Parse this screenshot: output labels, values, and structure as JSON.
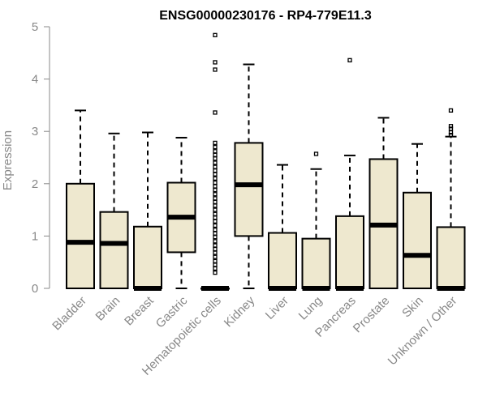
{
  "chart_data": {
    "type": "box",
    "title": "ENSG00000230176 - RP4-779E11.3",
    "xlabel": "",
    "ylabel": "Expression",
    "ylim": [
      0,
      5
    ],
    "yticks": [
      "0",
      "1",
      "2",
      "3",
      "4",
      "5"
    ],
    "box_fill": "#EEE8CF",
    "categories": [
      "Bladder",
      "Brain",
      "Breast",
      "Gastric",
      "Hematopoietic cells",
      "Kidney",
      "Liver",
      "Lung",
      "Pancreas",
      "Prostate",
      "Skin",
      "Unknown / Other"
    ],
    "boxes": [
      {
        "min": 0,
        "q1": 0,
        "median": 0.88,
        "q3": 2.0,
        "max": 3.4,
        "outliers": []
      },
      {
        "min": 0,
        "q1": 0,
        "median": 0.86,
        "q3": 1.46,
        "max": 2.96,
        "outliers": []
      },
      {
        "min": 0,
        "q1": 0,
        "median": 0,
        "q3": 1.18,
        "max": 2.98,
        "outliers": []
      },
      {
        "min": 0,
        "q1": 0.69,
        "median": 1.36,
        "q3": 2.02,
        "max": 2.88,
        "outliers": []
      },
      {
        "min": 0,
        "q1": 0,
        "median": 0,
        "q3": 0,
        "max": 0,
        "outliers": [
          4.84,
          4.32,
          4.18,
          3.36,
          2.78,
          2.7,
          2.62,
          2.55,
          2.48,
          2.4,
          2.32,
          2.25,
          2.18,
          2.1,
          2.02,
          1.95,
          1.88,
          1.8,
          1.72,
          1.65,
          1.58,
          1.5,
          1.42,
          1.35,
          1.28,
          1.2,
          1.12,
          1.05,
          0.98,
          0.9,
          0.82,
          0.75,
          0.68,
          0.6,
          0.52,
          0.45,
          0.38,
          0.3
        ]
      },
      {
        "min": 0,
        "q1": 1.0,
        "median": 1.98,
        "q3": 2.78,
        "max": 4.28,
        "outliers": []
      },
      {
        "min": 0,
        "q1": 0,
        "median": 0,
        "q3": 1.06,
        "max": 2.36,
        "outliers": []
      },
      {
        "min": 0,
        "q1": 0,
        "median": 0,
        "q3": 0.95,
        "max": 2.28,
        "outliers": [
          2.57
        ]
      },
      {
        "min": 0,
        "q1": 0,
        "median": 0,
        "q3": 1.38,
        "max": 2.54,
        "outliers": [
          4.36
        ]
      },
      {
        "min": 0,
        "q1": 0,
        "median": 1.21,
        "q3": 2.47,
        "max": 3.26,
        "outliers": []
      },
      {
        "min": 0,
        "q1": 0,
        "median": 0.63,
        "q3": 1.83,
        "max": 2.76,
        "outliers": []
      },
      {
        "min": 0,
        "q1": 0,
        "median": 0,
        "q3": 1.17,
        "max": 2.9,
        "outliers": [
          3.4,
          3.1,
          3.05,
          2.98,
          2.93
        ]
      }
    ]
  }
}
